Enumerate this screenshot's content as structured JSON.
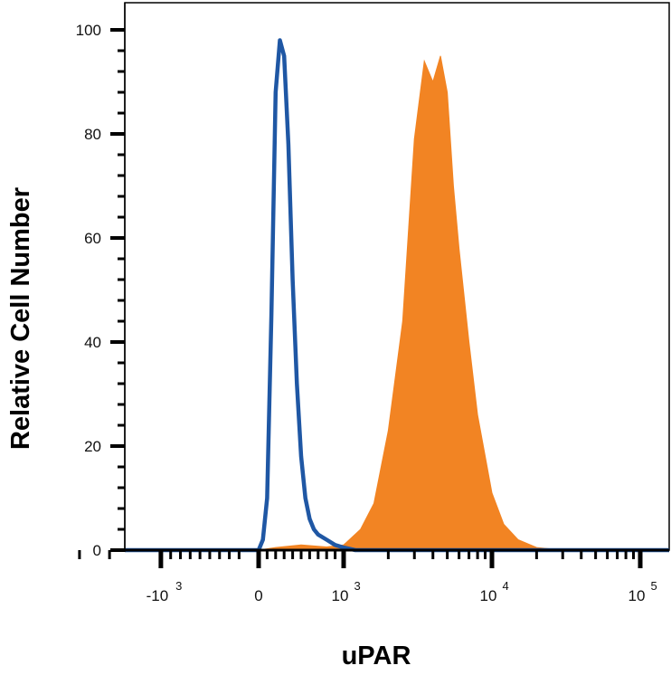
{
  "chart_data": {
    "type": "area",
    "xlabel": "uPAR",
    "ylabel": "Relative Cell Number",
    "x_scale": "biexponential",
    "ylim": [
      0,
      100
    ],
    "yticks": [
      "0",
      "20",
      "40",
      "60",
      "80",
      "100"
    ],
    "xticks": [
      {
        "value": -1000,
        "base": "-10",
        "exp": "3"
      },
      {
        "value": 0,
        "base": "0",
        "exp": ""
      },
      {
        "value": 1000,
        "base": "10",
        "exp": "3"
      },
      {
        "value": 10000,
        "base": "10",
        "exp": "4"
      },
      {
        "value": 100000,
        "base": "10",
        "exp": "5"
      }
    ],
    "grid": false,
    "series": [
      {
        "style": "outline",
        "color": "#1f57a4",
        "x": [
          -3000,
          -1000,
          0,
          50,
          100,
          150,
          200,
          250,
          300,
          350,
          400,
          450,
          500,
          550,
          600,
          650,
          700,
          800,
          900,
          1000,
          1200,
          3000,
          10000,
          100000,
          300000
        ],
        "y": [
          0,
          0,
          0,
          2,
          10,
          45,
          88,
          98,
          95,
          78,
          52,
          32,
          18,
          10,
          6,
          4,
          3,
          2,
          1,
          0.5,
          0,
          0,
          0,
          0,
          0
        ]
      },
      {
        "style": "filled",
        "color": "#f28423",
        "x": [
          -3000,
          0,
          200,
          500,
          800,
          1000,
          1300,
          1600,
          2000,
          2500,
          3000,
          3500,
          4000,
          4500,
          5000,
          5500,
          6000,
          7000,
          8000,
          10000,
          12000,
          15000,
          20000,
          30000,
          100000,
          300000
        ],
        "y": [
          0,
          0,
          0.5,
          1,
          0.6,
          1,
          4,
          9,
          23,
          44,
          79,
          94,
          90,
          95,
          88,
          70,
          58,
          40,
          26,
          11,
          5,
          2,
          0.5,
          0,
          0,
          0
        ]
      }
    ]
  }
}
